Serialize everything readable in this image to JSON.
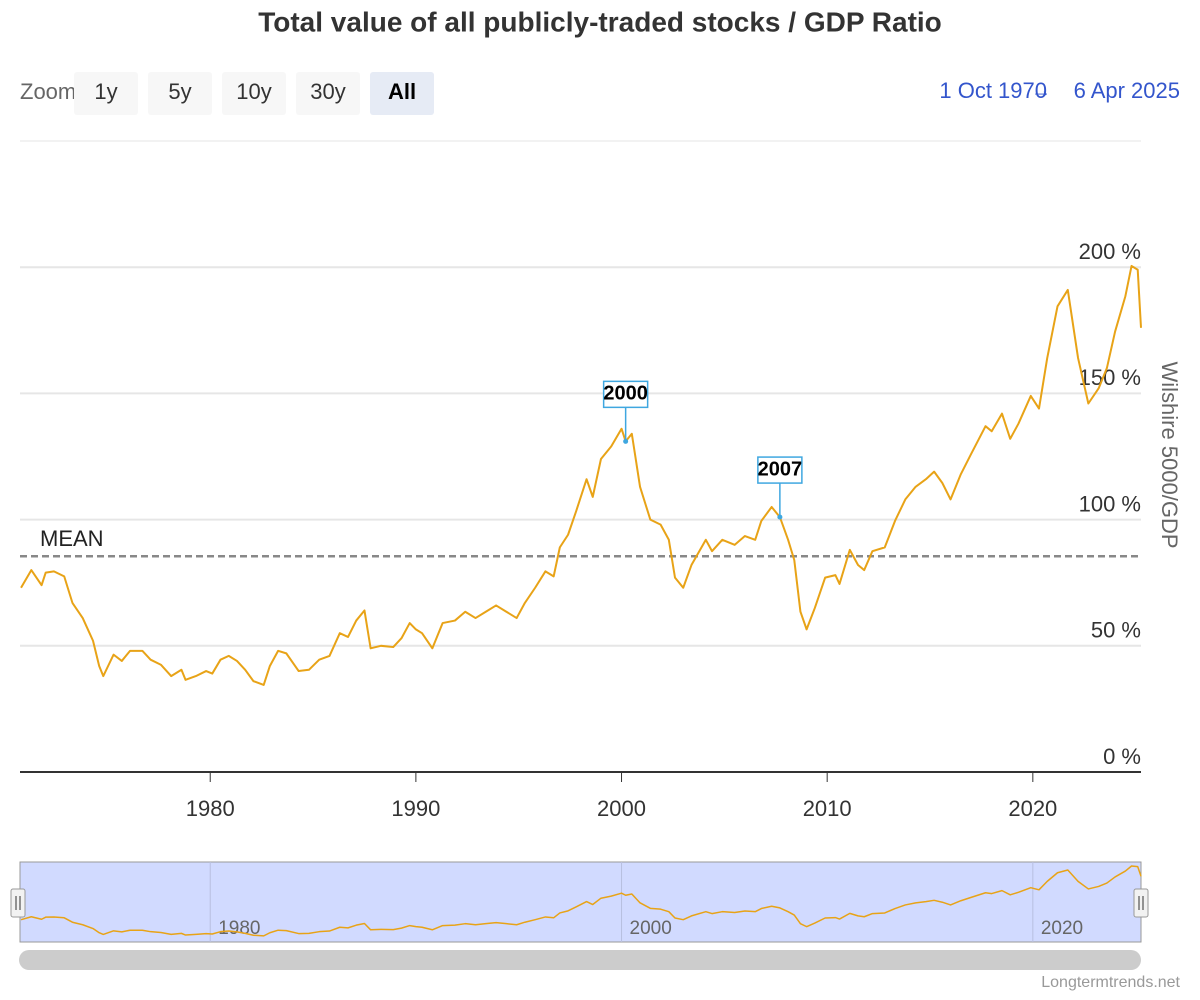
{
  "chart_data": {
    "type": "line",
    "title": "Total value of all publicly-traded stocks / GDP Ratio",
    "zoom_label": "Zoom",
    "zoom_buttons": [
      "1y",
      "5y",
      "10y",
      "30y",
      "All"
    ],
    "zoom_selected": "All",
    "range_from": "1 Oct 1970",
    "range_separator": "→",
    "range_to": "6 Apr 2025",
    "ylabel": "Wilshire 5000/GDP",
    "credits": "Longtermtrends.net",
    "xlim": [
      1970.75,
      2025.26
    ],
    "xticks": [
      1980,
      1990,
      2000,
      2010,
      2020
    ],
    "ylim": [
      0,
      250
    ],
    "yticks": [
      {
        "value": 0,
        "label": "0 %"
      },
      {
        "value": 50,
        "label": "50 %"
      },
      {
        "value": 100,
        "label": "100 %"
      },
      {
        "value": 150,
        "label": "150 %"
      },
      {
        "value": 200,
        "label": "200 %"
      }
    ],
    "grid": true,
    "mean": {
      "label": "MEAN",
      "value": 85.5,
      "color": "#888888"
    },
    "annotations": [
      {
        "label": "2000",
        "x": 2000.2,
        "y": 131
      },
      {
        "label": "2007",
        "x": 2007.7,
        "y": 101
      }
    ],
    "series": [
      {
        "color": "#e8a317",
        "x": [
          1970.8,
          1971.3,
          1971.8,
          1972.0,
          1972.4,
          1972.9,
          1973.3,
          1973.8,
          1974.3,
          1974.6,
          1974.8,
          1975.3,
          1975.7,
          1976.1,
          1976.7,
          1977.1,
          1977.6,
          1978.1,
          1978.6,
          1978.8,
          1979.3,
          1979.8,
          1980.1,
          1980.5,
          1980.9,
          1981.3,
          1981.7,
          1982.1,
          1982.6,
          1982.9,
          1983.3,
          1983.7,
          1984.3,
          1984.8,
          1985.3,
          1985.8,
          1986.3,
          1986.7,
          1987.1,
          1987.5,
          1987.8,
          1988.3,
          1988.9,
          1989.3,
          1989.7,
          1990.0,
          1990.3,
          1990.8,
          1991.3,
          1991.9,
          1992.4,
          1992.9,
          1993.4,
          1993.9,
          1994.4,
          1994.9,
          1995.3,
          1995.8,
          1996.3,
          1996.7,
          1997.0,
          1997.4,
          1997.8,
          1998.3,
          1998.6,
          1999.0,
          1999.5,
          2000.0,
          2000.2,
          2000.5,
          2000.9,
          2001.4,
          2001.9,
          2002.3,
          2002.6,
          2003.0,
          2003.4,
          2004.1,
          2004.4,
          2004.9,
          2005.5,
          2006.0,
          2006.5,
          2006.8,
          2007.3,
          2007.7,
          2008.1,
          2008.4,
          2008.7,
          2009.0,
          2009.4,
          2009.9,
          2010.4,
          2010.6,
          2011.1,
          2011.5,
          2011.8,
          2012.2,
          2012.8,
          2013.3,
          2013.8,
          2014.3,
          2014.8,
          2015.2,
          2015.6,
          2016.0,
          2016.5,
          2017.0,
          2017.7,
          2018.0,
          2018.5,
          2018.9,
          2019.3,
          2019.9,
          2020.3,
          2020.7,
          2021.2,
          2021.7,
          2022.2,
          2022.7,
          2023.2,
          2023.6,
          2024.0,
          2024.5,
          2024.8,
          2025.1,
          2025.26
        ],
        "values": [
          73,
          80,
          74,
          79,
          79.5,
          77.5,
          67,
          61,
          52,
          42,
          38,
          46.5,
          44,
          48,
          48,
          44.5,
          42.5,
          38,
          40.5,
          36.5,
          38,
          40,
          39,
          44.5,
          46,
          44,
          40.5,
          36,
          34.5,
          42,
          48,
          47,
          40,
          40.5,
          44.5,
          46,
          55,
          53.5,
          60,
          64,
          49,
          50,
          49.5,
          53,
          59,
          56.5,
          55,
          49,
          59,
          60,
          63.5,
          61,
          63.5,
          66,
          63.5,
          61,
          67,
          73,
          79.5,
          77.5,
          89,
          94,
          103.5,
          116,
          109,
          124,
          129,
          136,
          131,
          134,
          113,
          100,
          98,
          92,
          77,
          73,
          82,
          92,
          87.5,
          92,
          90,
          93.5,
          92,
          99.5,
          105,
          101,
          92,
          84,
          63.5,
          56.5,
          65,
          77,
          78,
          74.5,
          88,
          82,
          80,
          87.5,
          89,
          99.5,
          108,
          113,
          116,
          119,
          114.5,
          108,
          118,
          126,
          137,
          135,
          142,
          132,
          138,
          149,
          144,
          164,
          184.5,
          191,
          164,
          146,
          152,
          160,
          174.5,
          188.5,
          200.5,
          199,
          176
        ]
      }
    ],
    "navigator": {
      "xticks": [
        1980,
        2000,
        2020
      ],
      "ylim": [
        20,
        210
      ]
    }
  }
}
